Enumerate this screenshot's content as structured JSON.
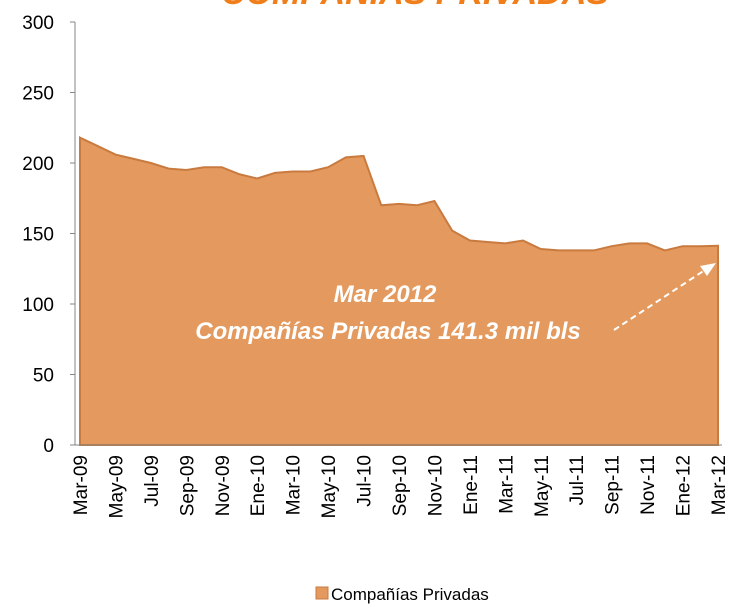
{
  "chart_data": {
    "type": "area",
    "title": "COMPAÑIAS PRIVADAS",
    "categories": [
      "Mar-09",
      null,
      "May-09",
      null,
      "Jul-09",
      null,
      "Sep-09",
      null,
      "Nov-09",
      null,
      "Ene-10",
      null,
      "Mar-10",
      null,
      "May-10",
      null,
      "Jul-10",
      null,
      "Sep-10",
      null,
      "Nov-10",
      null,
      "Ene-11",
      null,
      "Mar-11",
      null,
      "May-11",
      null,
      "Jul-11",
      null,
      "Sep-11",
      null,
      "Nov-11",
      null,
      "Ene-12",
      null,
      "Mar-12"
    ],
    "series": [
      {
        "name": "Compañías Privadas",
        "color": "#e49a5e",
        "values": [
          218,
          212,
          206,
          203,
          200,
          196,
          195,
          197,
          197,
          192,
          189,
          193,
          194,
          194,
          197,
          204,
          205,
          170,
          171,
          170,
          173,
          152,
          145,
          144,
          143,
          145,
          139,
          138,
          138,
          138,
          141,
          143,
          143,
          138,
          141,
          141,
          141.3
        ]
      }
    ],
    "ylim": [
      0,
      300
    ],
    "yticks": [
      0,
      50,
      100,
      150,
      200,
      250,
      300
    ],
    "annotations": [
      "Mar 2012",
      "Compañías Privadas 141.3 mil bls"
    ]
  }
}
